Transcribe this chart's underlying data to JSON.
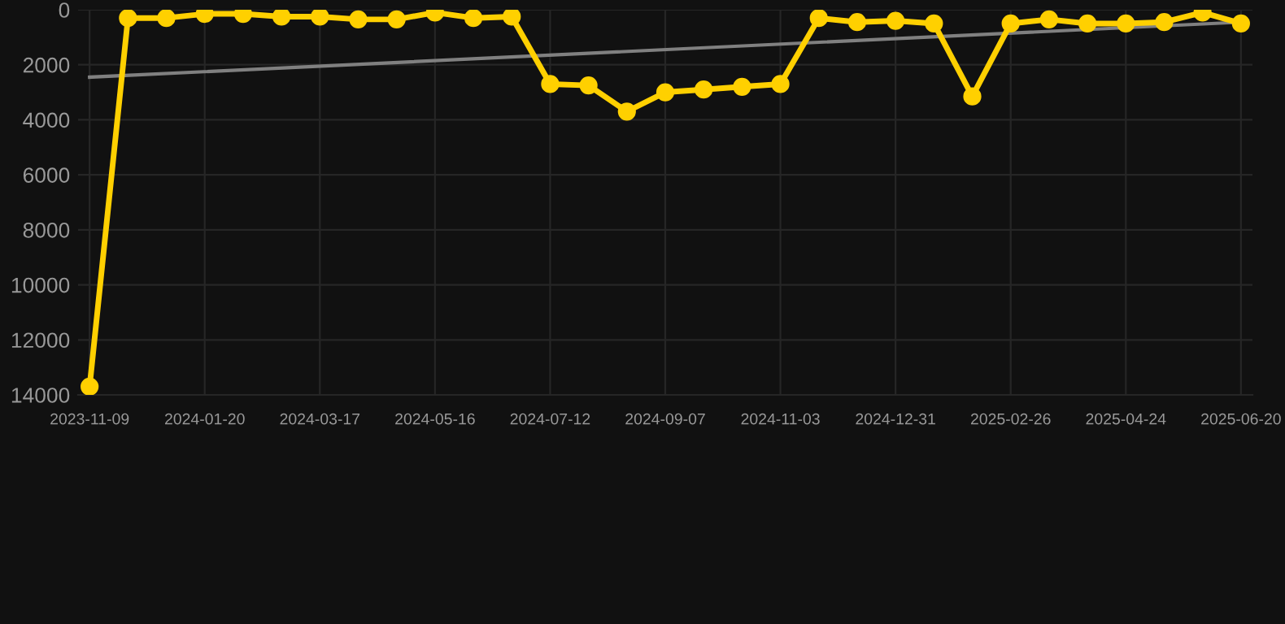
{
  "chart_data": {
    "type": "line",
    "categories": [
      "2023-11-09",
      null,
      null,
      "2024-01-20",
      null,
      null,
      "2024-03-17",
      null,
      null,
      "2024-05-16",
      null,
      null,
      "2024-07-12",
      null,
      null,
      "2024-09-07",
      null,
      null,
      "2024-11-03",
      null,
      null,
      "2024-12-31",
      null,
      null,
      "2025-02-26",
      null,
      null,
      "2025-04-24",
      null,
      null,
      "2025-06-20"
    ],
    "series": [
      {
        "color": "#ffd000",
        "marker": "circle",
        "values": [
          13700,
          300,
          300,
          150,
          150,
          250,
          250,
          350,
          350,
          100,
          300,
          250,
          2700,
          2750,
          3700,
          3000,
          2900,
          2800,
          2700,
          300,
          450,
          400,
          500,
          3150,
          500,
          350,
          500,
          500,
          450,
          100,
          500
        ]
      },
      {
        "type": "line",
        "color": "#808080",
        "marker": "none",
        "values": [
          2450,
          null,
          null,
          null,
          null,
          null,
          null,
          null,
          null,
          null,
          null,
          null,
          null,
          null,
          null,
          null,
          null,
          null,
          null,
          null,
          null,
          null,
          null,
          null,
          null,
          null,
          null,
          null,
          null,
          null,
          450
        ]
      }
    ],
    "ylim": [
      14000,
      0
    ],
    "yticks": [
      0,
      2000,
      4000,
      6000,
      8000,
      10000,
      12000,
      14000
    ],
    "grid": true,
    "legend": false
  }
}
